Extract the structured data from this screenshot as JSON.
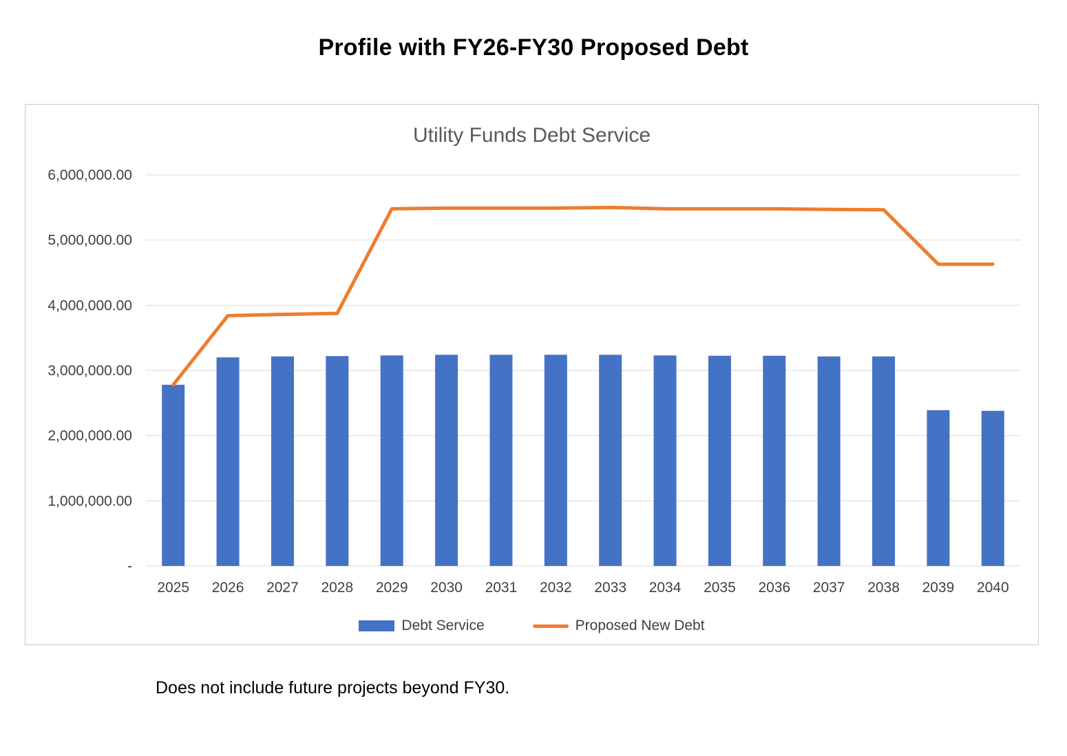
{
  "page": {
    "title": "Profile with FY26-FY30 Proposed Debt",
    "footnote": "Does not include future projects beyond FY30."
  },
  "chart_data": {
    "type": "bar",
    "title": "Utility Funds Debt Service",
    "categories": [
      "2025",
      "2026",
      "2027",
      "2028",
      "2029",
      "2030",
      "2031",
      "2032",
      "2033",
      "2034",
      "2035",
      "2036",
      "2037",
      "2038",
      "2039",
      "2040"
    ],
    "series": [
      {
        "name": "Debt Service",
        "type": "bar",
        "color": "#4472C4",
        "values": [
          2780000,
          3200000,
          3215000,
          3220000,
          3230000,
          3240000,
          3240000,
          3240000,
          3240000,
          3230000,
          3225000,
          3225000,
          3215000,
          3215000,
          2390000,
          2380000
        ]
      },
      {
        "name": "Proposed New Debt",
        "type": "line",
        "color": "#ED7D31",
        "values": [
          2780000,
          3840000,
          3860000,
          3875000,
          5480000,
          5490000,
          5490000,
          5490000,
          5500000,
          5480000,
          5480000,
          5480000,
          5470000,
          5465000,
          4630000,
          4630000
        ]
      }
    ],
    "ylim": [
      0,
      6000000
    ],
    "y_tick_values": [
      6000000,
      5000000,
      4000000,
      3000000,
      2000000,
      1000000,
      0
    ],
    "y_ticks": [
      "6,000,000.00",
      "5,000,000.00",
      "4,000,000.00",
      "3,000,000.00",
      "2,000,000.00",
      "1,000,000.00",
      "-"
    ],
    "grid": true,
    "legend_position": "bottom",
    "colors": {
      "grid": "#d9d9d9",
      "axis_text": "#404040"
    }
  }
}
